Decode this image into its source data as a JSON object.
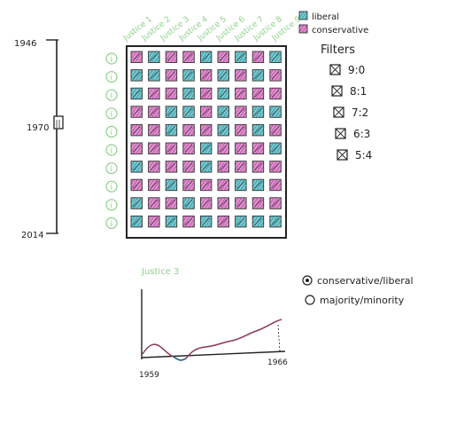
{
  "timeline": {
    "start_label": "1946",
    "mid_label": "1970",
    "end_label": "2014",
    "slider_glyph": "||"
  },
  "justice_labels": [
    "Justice 1",
    "Justice 2",
    "Justice 3",
    "Justice 4",
    "Justice 5",
    "Justice 6",
    "Justice 7",
    "Justice 8",
    "Justice 9"
  ],
  "row_marker_glyph": "i",
  "legend": {
    "liberal_label": "liberal",
    "conservative_label": "conservative",
    "liberal_color": "#1a9aa8",
    "conservative_color": "#c13fa5"
  },
  "filters": {
    "title": "Filters",
    "items": [
      "9:0",
      "8:1",
      "7:2",
      "6:3",
      "5:4"
    ]
  },
  "grid": {
    "rows": [
      [
        "C",
        "L",
        "C",
        "C",
        "L",
        "C",
        "L",
        "C",
        "L"
      ],
      [
        "L",
        "L",
        "C",
        "L",
        "C",
        "L",
        "C",
        "L",
        "C"
      ],
      [
        "L",
        "C",
        "C",
        "L",
        "C",
        "L",
        "C",
        "C",
        "C"
      ],
      [
        "C",
        "C",
        "L",
        "L",
        "C",
        "L",
        "C",
        "L",
        "L"
      ],
      [
        "C",
        "C",
        "L",
        "C",
        "C",
        "L",
        "C",
        "L",
        "C"
      ],
      [
        "C",
        "C",
        "C",
        "C",
        "L",
        "C",
        "C",
        "C",
        "L"
      ],
      [
        "L",
        "C",
        "C",
        "C",
        "L",
        "C",
        "C",
        "C",
        "C"
      ],
      [
        "C",
        "C",
        "L",
        "C",
        "C",
        "C",
        "L",
        "L",
        "C"
      ],
      [
        "L",
        "C",
        "C",
        "L",
        "C",
        "C",
        "C",
        "C",
        "C"
      ],
      [
        "L",
        "C",
        "L",
        "C",
        "L",
        "C",
        "L",
        "L",
        "L"
      ]
    ]
  },
  "detail": {
    "title": "Justice 3",
    "x_start_label": "1959",
    "x_end_label": "1966",
    "radio_options": [
      {
        "label": "conservative/liberal",
        "selected": true
      },
      {
        "label": "majority/minority",
        "selected": false
      }
    ]
  },
  "colors": {
    "ink": "#222222",
    "pencil_green": "#8fd08a",
    "pencil_pink": "#e5a7dc",
    "line_maroon": "#8a3a52",
    "line_blue": "#1f5f86"
  }
}
